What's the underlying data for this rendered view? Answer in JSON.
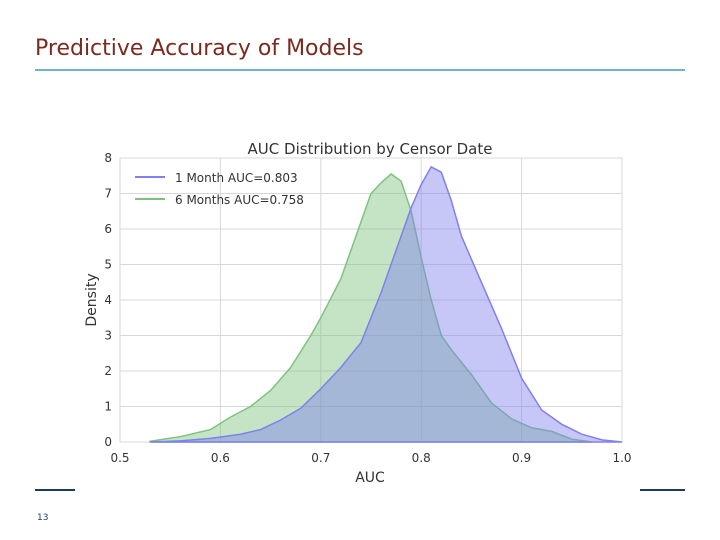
{
  "slide": {
    "title": "Predictive Accuracy of Models",
    "page_number": "13"
  },
  "colors": {
    "title": "#7a2b1f",
    "rule": "#6fb6c4",
    "footer": "#1f3b5c",
    "series_1": "#8080ee",
    "series_2": "#7cc47e"
  },
  "chart_data": {
    "type": "area",
    "title": "AUC Distribution by Censor Date",
    "xlabel": "AUC",
    "ylabel": "Density",
    "xlim": [
      0.5,
      1.0
    ],
    "ylim": [
      0,
      8
    ],
    "xticks": [
      "0.5",
      "0.6",
      "0.7",
      "0.8",
      "0.9",
      "1.0"
    ],
    "yticks": [
      "0",
      "1",
      "2",
      "3",
      "4",
      "5",
      "6",
      "7",
      "8"
    ],
    "grid": true,
    "legend_position": "top-left",
    "series": [
      {
        "name": "1 Month AUC=0.803",
        "x": [
          0.53,
          0.56,
          0.59,
          0.62,
          0.64,
          0.66,
          0.68,
          0.7,
          0.72,
          0.74,
          0.76,
          0.78,
          0.79,
          0.8,
          0.81,
          0.82,
          0.83,
          0.84,
          0.86,
          0.88,
          0.9,
          0.92,
          0.94,
          0.96,
          0.98,
          1.0
        ],
        "y": [
          0.0,
          0.03,
          0.1,
          0.22,
          0.35,
          0.62,
          0.95,
          1.5,
          2.1,
          2.8,
          4.2,
          5.8,
          6.6,
          7.25,
          7.75,
          7.6,
          6.8,
          5.8,
          4.5,
          3.2,
          1.8,
          0.9,
          0.5,
          0.22,
          0.06,
          0.0
        ]
      },
      {
        "name": "6 Months AUC=0.758",
        "x": [
          0.53,
          0.56,
          0.59,
          0.61,
          0.63,
          0.65,
          0.67,
          0.69,
          0.7,
          0.72,
          0.74,
          0.75,
          0.76,
          0.77,
          0.78,
          0.79,
          0.8,
          0.81,
          0.82,
          0.83,
          0.85,
          0.87,
          0.89,
          0.91,
          0.93,
          0.95,
          0.97
        ],
        "y": [
          0.02,
          0.15,
          0.35,
          0.7,
          1.0,
          1.45,
          2.1,
          3.0,
          3.5,
          4.6,
          6.2,
          7.0,
          7.3,
          7.55,
          7.35,
          6.5,
          5.2,
          4.0,
          3.0,
          2.6,
          1.9,
          1.1,
          0.65,
          0.4,
          0.3,
          0.08,
          0.0
        ]
      }
    ]
  }
}
